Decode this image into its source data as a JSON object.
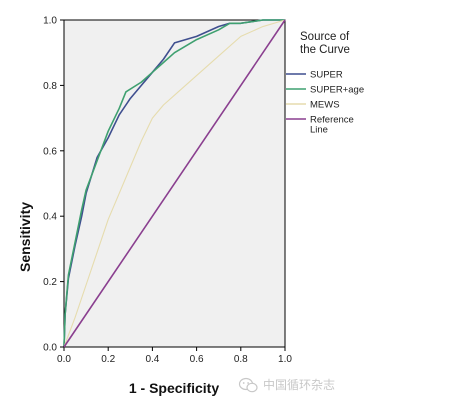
{
  "chart_data": {
    "type": "line",
    "title": "",
    "xlabel": "1 - Specificity",
    "ylabel": "Sensitivity",
    "xlim": [
      0.0,
      1.0
    ],
    "ylim": [
      0.0,
      1.0
    ],
    "x_ticks": [
      "0.0",
      "0.2",
      "0.4",
      "0.6",
      "0.8",
      "1.0"
    ],
    "y_ticks": [
      "0.0",
      "0.2",
      "0.4",
      "0.6",
      "0.8",
      "1.0"
    ],
    "grid": false,
    "plot_background": "#f0f0f0",
    "legend": {
      "title": [
        "Source of",
        "the Curve"
      ],
      "placement": "right"
    },
    "series": [
      {
        "name": "SUPER",
        "color": "#3f4f8f",
        "x": [
          0.0,
          0.005,
          0.02,
          0.05,
          0.08,
          0.1,
          0.15,
          0.2,
          0.25,
          0.3,
          0.35,
          0.4,
          0.45,
          0.5,
          0.6,
          0.7,
          0.75,
          0.8,
          0.9,
          1.0
        ],
        "y": [
          0.0,
          0.1,
          0.21,
          0.31,
          0.4,
          0.47,
          0.58,
          0.64,
          0.71,
          0.76,
          0.8,
          0.84,
          0.88,
          0.93,
          0.95,
          0.98,
          0.99,
          0.99,
          1.0,
          1.0
        ]
      },
      {
        "name": "SUPER+age",
        "color": "#3fa070",
        "x": [
          0.0,
          0.005,
          0.02,
          0.05,
          0.08,
          0.1,
          0.15,
          0.2,
          0.25,
          0.28,
          0.35,
          0.4,
          0.45,
          0.5,
          0.6,
          0.7,
          0.75,
          0.8,
          0.9,
          1.0
        ],
        "y": [
          0.0,
          0.1,
          0.22,
          0.32,
          0.42,
          0.48,
          0.57,
          0.66,
          0.73,
          0.78,
          0.81,
          0.84,
          0.87,
          0.9,
          0.94,
          0.97,
          0.99,
          0.99,
          1.0,
          1.0
        ]
      },
      {
        "name": "MEWS",
        "color": "#e6dcae",
        "x": [
          0.0,
          0.05,
          0.1,
          0.15,
          0.2,
          0.25,
          0.3,
          0.35,
          0.4,
          0.45,
          0.5,
          0.6,
          0.7,
          0.8,
          0.9,
          1.0
        ],
        "y": [
          0.0,
          0.09,
          0.19,
          0.29,
          0.39,
          0.47,
          0.55,
          0.63,
          0.7,
          0.74,
          0.77,
          0.83,
          0.89,
          0.95,
          0.98,
          1.0
        ]
      },
      {
        "name": "Reference Line",
        "color": "#8a3f8f",
        "x": [
          0.0,
          1.0
        ],
        "y": [
          0.0,
          1.0
        ]
      }
    ]
  },
  "watermark": {
    "text": "中国循环杂志",
    "icon": "wechat-icon"
  }
}
